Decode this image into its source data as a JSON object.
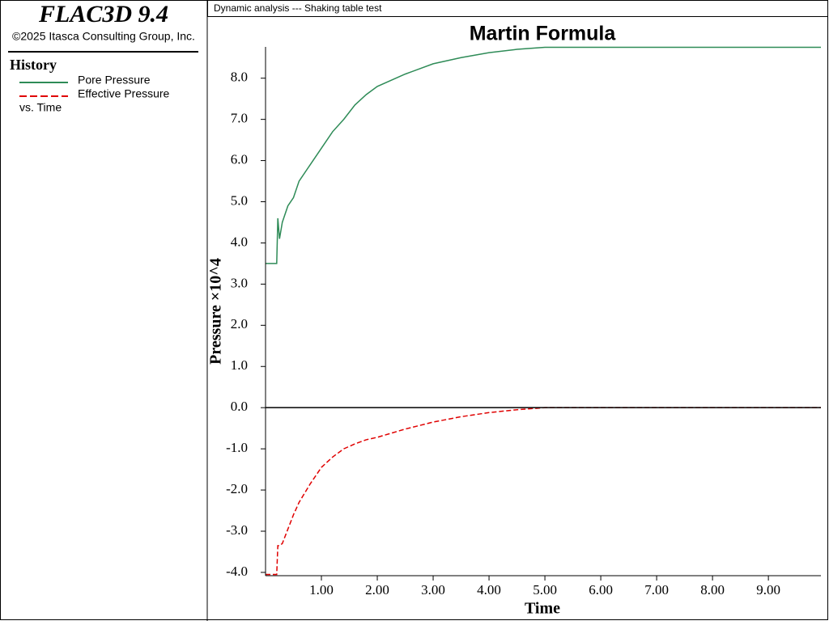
{
  "sidebar": {
    "app_title": "FLAC3D 9.4",
    "copyright": "©2025 Itasca Consulting Group, Inc.",
    "history_heading": "History",
    "vs_label": "vs. Time"
  },
  "header": "Dynamic analysis --- Shaking table test",
  "chart_data": {
    "type": "line",
    "title": "Martin Formula",
    "x_label": "Time",
    "y_label": "Pressure ×10^4",
    "x": [
      0,
      0.2,
      0.22,
      0.25,
      0.3,
      0.4,
      0.5,
      0.6,
      0.8,
      1.0,
      1.2,
      1.4,
      1.6,
      1.8,
      2.0,
      2.5,
      3.0,
      3.5,
      4.0,
      4.5,
      5.0,
      6.0,
      7.0,
      8.0,
      9.0,
      9.94
    ],
    "series": [
      {
        "name": "Pore Pressure",
        "color": "#2e8b57",
        "dash": false,
        "values": [
          3.5,
          3.5,
          4.6,
          4.1,
          4.5,
          4.9,
          5.1,
          5.5,
          5.9,
          6.3,
          6.7,
          7.0,
          7.35,
          7.6,
          7.8,
          8.1,
          8.35,
          8.5,
          8.62,
          8.7,
          8.75,
          8.75,
          8.75,
          8.75,
          8.75,
          8.75
        ]
      },
      {
        "name": "Effective Pressure",
        "color": "#e00000",
        "dash": true,
        "values": [
          -4.05,
          -4.05,
          -3.35,
          -3.35,
          -3.3,
          -2.95,
          -2.6,
          -2.3,
          -1.85,
          -1.45,
          -1.2,
          -1.0,
          -0.88,
          -0.78,
          -0.72,
          -0.52,
          -0.35,
          -0.22,
          -0.12,
          -0.05,
          0,
          0,
          0,
          0,
          0,
          0
        ]
      }
    ],
    "xlim": [
      0,
      9.94
    ],
    "ylim": [
      -4.08,
      8.76
    ],
    "xticks": [
      {
        "value": 1,
        "label": "1.00"
      },
      {
        "value": 2,
        "label": "2.00"
      },
      {
        "value": 3,
        "label": "3.00"
      },
      {
        "value": 4,
        "label": "4.00"
      },
      {
        "value": 5,
        "label": "5.00"
      },
      {
        "value": 6,
        "label": "6.00"
      },
      {
        "value": 7,
        "label": "7.00"
      },
      {
        "value": 8,
        "label": "8.00"
      },
      {
        "value": 9,
        "label": "9.00"
      }
    ],
    "yticks": [
      {
        "value": 8,
        "label": "8.0"
      },
      {
        "value": 7,
        "label": "7.0"
      },
      {
        "value": 6,
        "label": "6.0"
      },
      {
        "value": 5,
        "label": "5.0"
      },
      {
        "value": 4,
        "label": "4.0"
      },
      {
        "value": 3,
        "label": "3.0"
      },
      {
        "value": 2,
        "label": "2.0"
      },
      {
        "value": 1,
        "label": "1.0"
      },
      {
        "value": 0,
        "label": "0.0"
      },
      {
        "value": -1,
        "label": "-1.0"
      },
      {
        "value": -2,
        "label": "-2.0"
      },
      {
        "value": -3,
        "label": "-3.0"
      },
      {
        "value": -4,
        "label": "-4.0"
      }
    ],
    "zero_line": true
  }
}
